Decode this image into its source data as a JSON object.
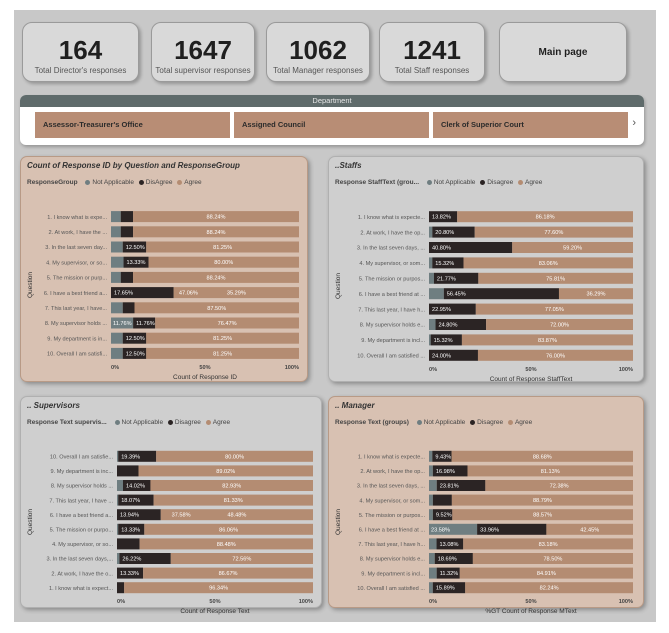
{
  "kpis": [
    {
      "value": "164",
      "label": "Total Director's responses"
    },
    {
      "value": "1647",
      "label": "Total supervisor responses"
    },
    {
      "value": "1062",
      "label": "Total Manager responses"
    },
    {
      "value": "1241",
      "label": "Total Staff responses"
    }
  ],
  "main_page_button": "Main page",
  "slicer": {
    "header": "Department",
    "items": [
      "Assessor-Treasurer's Office",
      "Assigned Council",
      "Clerk of Superior Court"
    ],
    "arrow": "›"
  },
  "colors": {
    "not_applicable": "#6f7e81",
    "disagree": "#2b2424",
    "agree": "#b48c72"
  },
  "panels": [
    {
      "title": "Count of Response ID by Question and ResponseGroup",
      "legend_title": "ResponseGroup",
      "legend": [
        "Not Applicable",
        "DisAgree",
        "Agree"
      ]
    },
    {
      "title": "..Staffs",
      "legend_title": "Response StaffText (grou...",
      "legend": [
        "Not Applicable",
        "Disagree",
        "Agree"
      ]
    },
    {
      "title": ".. Supervisors",
      "legend_title": "Response Text supervis...",
      "legend": [
        "Not Applicable",
        "Disagree",
        "Agree"
      ]
    },
    {
      "title": ".. Manager",
      "legend_title": "Response Text (groups)",
      "legend": [
        "Not Applicable",
        "Disagree",
        "Agree"
      ]
    }
  ],
  "chart_data": [
    {
      "type": "bar",
      "orientation": "horizontal",
      "stacked": "100%",
      "title": "Count of Response ID by Question and ResponseGroup",
      "xlabel": "Count of Response ID",
      "ylabel": "Question",
      "xticks": [
        "0%",
        "50%",
        "100%"
      ],
      "xlim": [
        0,
        100
      ],
      "legend_position": "top-left",
      "categories": [
        "1. I know what is expe...",
        "2. At work, I have the ...",
        "3. In the last seven day...",
        "4. My supervisor, or so...",
        "5. The mission or purp...",
        "6. I have a best friend a...",
        "7. This last year, I have...",
        "8. My supervisor holds ...",
        "9. My department is in...",
        "10. Overall I am satisfi..."
      ],
      "series": [
        {
          "name": "Not Applicable",
          "values": [
            5.2,
            5.2,
            6.25,
            6.67,
            5.2,
            0,
            6.25,
            11.76,
            6.25,
            6.25
          ],
          "labels": [
            "",
            "",
            "",
            "",
            "",
            "",
            "",
            "11.76%",
            "",
            ""
          ]
        },
        {
          "name": "DisAgree",
          "values": [
            6.56,
            6.56,
            12.5,
            13.33,
            6.56,
            17.65,
            6.25,
            11.76,
            12.5,
            12.5
          ],
          "labels": [
            "",
            "",
            "12.50%",
            "13.33%",
            "",
            "17.65%",
            "",
            "11.76%",
            "12.50%",
            "12.50%"
          ]
        },
        {
          "name": "Agree",
          "values": [
            88.24,
            88.24,
            81.25,
            80.0,
            88.24,
            35.29,
            87.5,
            76.47,
            81.25,
            81.25
          ],
          "labels": [
            "88.24%",
            "88.24%",
            "81.25%",
            "80.00%",
            "88.24%",
            "35.29%",
            "87.50%",
            "76.47%",
            "81.25%",
            "81.25%"
          ]
        }
      ],
      "extra": {
        "mid_label_row": 5,
        "mid_label": "47.06%",
        "mid_value": 47.06
      }
    },
    {
      "type": "bar",
      "orientation": "horizontal",
      "stacked": "100%",
      "title": "..Staffs",
      "xlabel": "Count of Response StaffText",
      "ylabel": "Question",
      "xticks": [
        "0%",
        "50%",
        "100%"
      ],
      "xlim": [
        0,
        100
      ],
      "legend_position": "top-left",
      "categories": [
        "1. I know what is expecte...",
        "2. At work, I have the op...",
        "3. In the last seven days, ...",
        "4. My supervisor, or som...",
        "5. The mission or purpos...",
        "6. I have a best friend at ...",
        "7. This last year, I have h...",
        "8. My supervisor holds e...",
        "9. My department is incl...",
        "10. Overall I am satisfied ..."
      ],
      "series": [
        {
          "name": "Not Applicable",
          "values": [
            0,
            1.62,
            0,
            1.6,
            2.42,
            7.26,
            0,
            3.2,
            0.82,
            0
          ],
          "labels": [
            "",
            "",
            "",
            "",
            "",
            "",
            "",
            "",
            "",
            ""
          ]
        },
        {
          "name": "Disagree",
          "values": [
            13.82,
            20.8,
            40.8,
            15.32,
            21.77,
            56.45,
            22.95,
            24.8,
            15.32,
            24.0
          ],
          "labels": [
            "13.82%",
            "20.80%",
            "40.80%",
            "15.32%",
            "21.77%",
            "56.45%",
            "22.95%",
            "24.80%",
            "15.32%",
            "24.00%"
          ]
        },
        {
          "name": "Agree",
          "values": [
            86.18,
            77.6,
            59.2,
            83.06,
            75.81,
            36.29,
            77.05,
            72.0,
            83.87,
            76.0
          ],
          "labels": [
            "86.18%",
            "77.60%",
            "59.20%",
            "83.06%",
            "75.81%",
            "36.29%",
            "77.05%",
            "72.00%",
            "83.87%",
            "76.00%"
          ]
        }
      ]
    },
    {
      "type": "bar",
      "orientation": "horizontal",
      "stacked": "100%",
      "title": ".. Supervisors",
      "xlabel": "Count of Response Text",
      "ylabel": "Question",
      "xticks": [
        "0%",
        "50%",
        "100%"
      ],
      "xlim": [
        0,
        100
      ],
      "legend_position": "top-left",
      "categories": [
        "10. Overall I am satisfie...",
        "9. My department is inc...",
        "8. My supervisor holds ...",
        "7. This last year, I have ...",
        "6. I have a best friend a...",
        "5. The mission or purpo...",
        "4. My supervisor, or so...",
        "3. In the last seven days,...",
        "2. At work, I have the o...",
        "1. I know what is expect..."
      ],
      "series": [
        {
          "name": "Not Applicable",
          "values": [
            0.61,
            0,
            3.05,
            0.61,
            0,
            0.61,
            0,
            1.22,
            0,
            0
          ],
          "labels": [
            "",
            "",
            "",
            "",
            "",
            "",
            "",
            "",
            "",
            ""
          ]
        },
        {
          "name": "Disagree",
          "values": [
            19.39,
            10.98,
            14.02,
            18.07,
            13.94,
            13.33,
            11.52,
            26.22,
            13.33,
            3.66
          ],
          "labels": [
            "19.39%",
            "",
            "14.02%",
            "18.07%",
            "13.94%",
            "13.33%",
            "",
            "26.22%",
            "13.33%",
            ""
          ]
        },
        {
          "name": "Agree",
          "values": [
            80.0,
            89.02,
            82.93,
            81.33,
            48.48,
            86.06,
            88.48,
            72.56,
            86.67,
            96.34
          ],
          "labels": [
            "80.00%",
            "89.02%",
            "82.93%",
            "81.33%",
            "48.48%",
            "86.06%",
            "88.48%",
            "72.56%",
            "86.67%",
            "96.34%"
          ]
        }
      ],
      "extra": {
        "mid_label_row": 4,
        "mid_label": "37.58%",
        "mid_value": 37.58
      }
    },
    {
      "type": "bar",
      "orientation": "horizontal",
      "stacked": "100%",
      "title": ".. Manager",
      "xlabel": "%GT Count of Response MText",
      "ylabel": "Question",
      "xticks": [
        "0%",
        "50%",
        "100%"
      ],
      "xlim": [
        0,
        100
      ],
      "legend_position": "top-left",
      "categories": [
        "1. I know what is expecte...",
        "2. At work, I have the op...",
        "3. In the last seven days, ...",
        "4. My supervisor, or som...",
        "5. The mission or purpos...",
        "6. I have a best friend at ...",
        "7. This last year, I have h...",
        "8. My supervisor holds e...",
        "9. My department is incl...",
        "10. Overall I am satisfied ..."
      ],
      "series": [
        {
          "name": "Not Applicable",
          "values": [
            1.63,
            1.89,
            3.81,
            1.91,
            1.91,
            23.58,
            3.7,
            2.82,
            3.77,
            1.87
          ],
          "labels": [
            "",
            "",
            "",
            "",
            "",
            "23.58%",
            "",
            "",
            "",
            ""
          ]
        },
        {
          "name": "Disagree",
          "values": [
            9.43,
            16.98,
            23.81,
            9.3,
            9.52,
            33.96,
            13.08,
            18.69,
            11.32,
            15.89
          ],
          "labels": [
            "9.43%",
            "16.98%",
            "23.81%",
            "",
            "9.52%",
            "33.96%",
            "13.08%",
            "18.69%",
            "11.32%",
            "15.89%"
          ]
        },
        {
          "name": "Agree",
          "values": [
            88.68,
            81.13,
            72.38,
            88.79,
            88.57,
            42.45,
            83.18,
            78.5,
            84.91,
            82.24
          ],
          "labels": [
            "88.68%",
            "81.13%",
            "72.38%",
            "88.79%",
            "88.57%",
            "42.45%",
            "83.18%",
            "78.50%",
            "84.91%",
            "82.24%"
          ]
        }
      ]
    }
  ]
}
